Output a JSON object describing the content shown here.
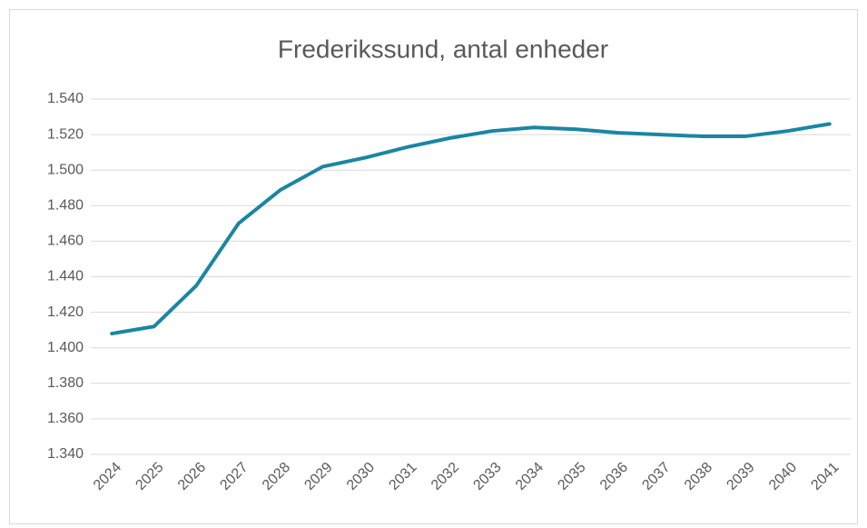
{
  "chart_data": {
    "type": "line",
    "title": "Frederikssund, antal enheder",
    "categories": [
      "2024",
      "2025",
      "2026",
      "2027",
      "2028",
      "2029",
      "2030",
      "2031",
      "2032",
      "2033",
      "2034",
      "2035",
      "2036",
      "2037",
      "2038",
      "2039",
      "2040",
      "2041"
    ],
    "values": [
      1408,
      1412,
      1435,
      1470,
      1489,
      1502,
      1507,
      1513,
      1518,
      1522,
      1524,
      1523,
      1521,
      1520,
      1519,
      1519,
      1522,
      1526
    ],
    "color": "#1a86a3",
    "ylim": [
      1340,
      1540
    ],
    "yticks": [
      {
        "value": 1340,
        "label": "1.340"
      },
      {
        "value": 1360,
        "label": "1.360"
      },
      {
        "value": 1380,
        "label": "1.380"
      },
      {
        "value": 1400,
        "label": "1.400"
      },
      {
        "value": 1420,
        "label": "1.420"
      },
      {
        "value": 1440,
        "label": "1.440"
      },
      {
        "value": 1460,
        "label": "1.460"
      },
      {
        "value": 1480,
        "label": "1.480"
      },
      {
        "value": 1500,
        "label": "1.500"
      },
      {
        "value": 1520,
        "label": "1.520"
      },
      {
        "value": 1540,
        "label": "1.540"
      }
    ],
    "grid": true
  }
}
